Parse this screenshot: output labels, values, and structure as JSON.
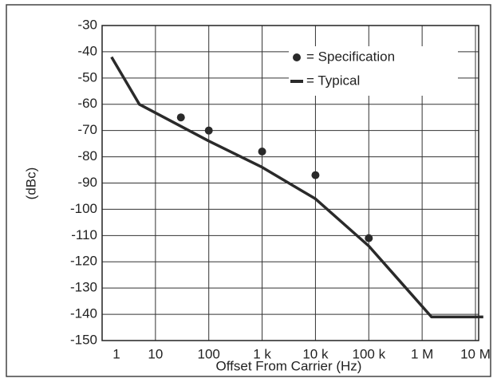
{
  "chart_data": {
    "type": "line",
    "xlabel": "Offset From Carrier  (Hz)",
    "ylabel": "(dBc)",
    "xscale": "log",
    "xlim": [
      1,
      10000000
    ],
    "xticks": [
      1,
      10,
      100,
      {
        "value": 1000,
        "label": "1 k"
      },
      {
        "value": 10000,
        "label": "10 k"
      },
      {
        "value": 100000,
        "label": "100 k"
      },
      {
        "value": 1000000,
        "label": "1 M"
      },
      {
        "value": 10000000,
        "label": "10 M"
      }
    ],
    "ylim": [
      -150,
      -30
    ],
    "yticks": [
      -30,
      -40,
      -50,
      -60,
      -70,
      -80,
      -90,
      -100,
      -110,
      -120,
      -130,
      -140,
      -150
    ],
    "grid": true,
    "legend": "upper right",
    "series": [
      {
        "name": "= Specification",
        "style": "markers",
        "color": "#2a2a2a",
        "x": [
          30,
          100,
          1000,
          10000,
          100000
        ],
        "values": [
          -65,
          -70,
          -78,
          -87,
          -111
        ]
      },
      {
        "name": "= Typical",
        "style": "line",
        "color": "#2a2a2a",
        "x": [
          1.5,
          5,
          100,
          1000,
          10000,
          100000,
          1500000,
          14000000
        ],
        "values": [
          -42,
          -60,
          -74,
          -84,
          -96,
          -114,
          -141,
          -141
        ]
      }
    ]
  }
}
